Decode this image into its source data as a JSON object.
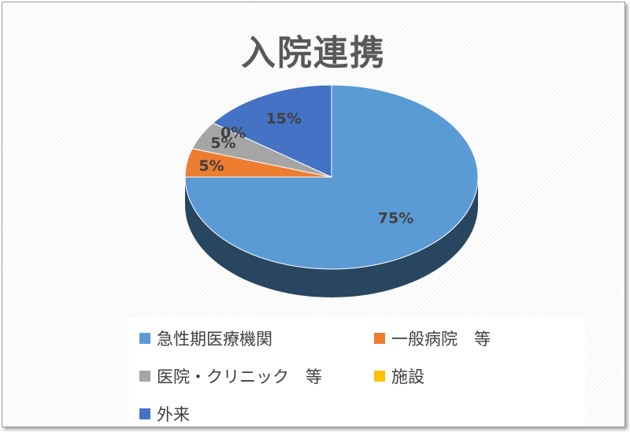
{
  "chart_data": {
    "type": "pie",
    "title": "入院連携",
    "categories": [
      "急性期医療機関",
      "一般病院　等",
      "医院・クリニック　等",
      "施設",
      "外来"
    ],
    "values": [
      75,
      5,
      5,
      0,
      15
    ],
    "data_labels": [
      "75%",
      "5%",
      "5%",
      "0%",
      "15%"
    ],
    "colors": [
      "#5B9BD5",
      "#ED7D31",
      "#A5A5A5",
      "#FFC000",
      "#4472C4"
    ],
    "legend_position": "bottom",
    "style": "3d"
  }
}
